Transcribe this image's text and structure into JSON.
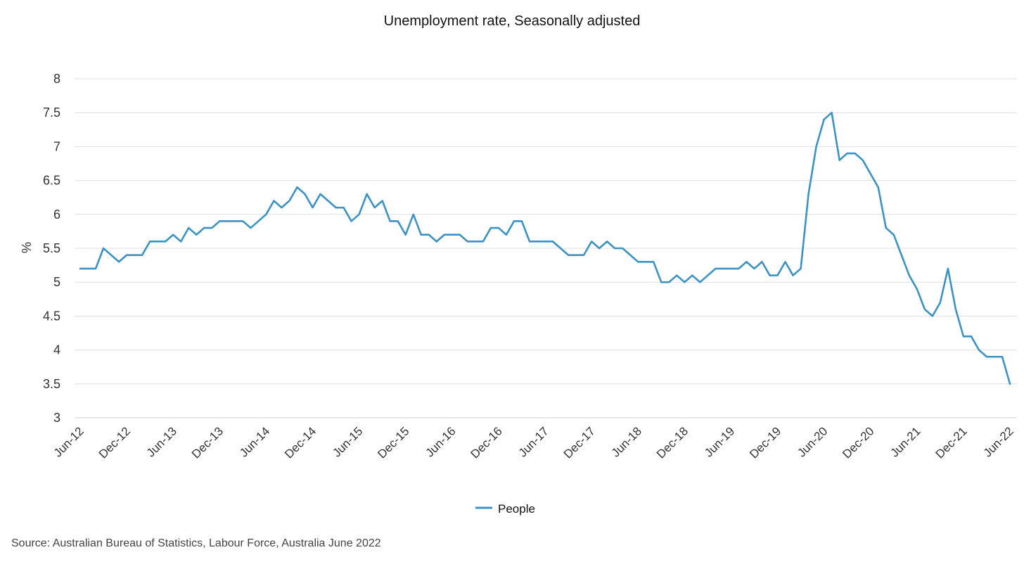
{
  "chart_data": {
    "type": "line",
    "title": "Unemployment rate, Seasonally adjusted",
    "ylabel": "%",
    "xlabel": "",
    "ylim": [
      3,
      8
    ],
    "yticks": [
      "3",
      "3.5",
      "4",
      "4.5",
      "5",
      "5.5",
      "6",
      "6.5",
      "7",
      "7.5",
      "8"
    ],
    "xticks": [
      "Jun-12",
      "Dec-12",
      "Jun-13",
      "Dec-13",
      "Jun-14",
      "Dec-14",
      "Jun-15",
      "Dec-15",
      "Jun-16",
      "Dec-16",
      "Jun-17",
      "Dec-17",
      "Jun-18",
      "Dec-18",
      "Jun-19",
      "Dec-19",
      "Jun-20",
      "Dec-20",
      "Jun-21",
      "Dec-21",
      "Jun-22"
    ],
    "grid": true,
    "legend_position": "bottom-center",
    "series": [
      {
        "name": "People",
        "color": "#3a93c3",
        "values": [
          5.2,
          5.2,
          5.2,
          5.5,
          5.4,
          5.3,
          5.4,
          5.4,
          5.4,
          5.6,
          5.6,
          5.6,
          5.7,
          5.6,
          5.8,
          5.7,
          5.8,
          5.8,
          5.9,
          5.9,
          5.9,
          5.9,
          5.8,
          5.9,
          6.0,
          6.2,
          6.1,
          6.2,
          6.4,
          6.3,
          6.1,
          6.3,
          6.2,
          6.1,
          6.1,
          5.9,
          6.0,
          6.3,
          6.1,
          6.2,
          5.9,
          5.9,
          5.7,
          6.0,
          5.7,
          5.7,
          5.6,
          5.7,
          5.7,
          5.7,
          5.6,
          5.6,
          5.6,
          5.8,
          5.8,
          5.7,
          5.9,
          5.9,
          5.6,
          5.6,
          5.6,
          5.6,
          5.5,
          5.4,
          5.4,
          5.4,
          5.6,
          5.5,
          5.6,
          5.5,
          5.5,
          5.4,
          5.3,
          5.3,
          5.3,
          5.0,
          5.0,
          5.1,
          5.0,
          5.1,
          5.0,
          5.1,
          5.2,
          5.2,
          5.2,
          5.2,
          5.3,
          5.2,
          5.3,
          5.1,
          5.1,
          5.3,
          5.1,
          5.2,
          6.3,
          7.0,
          7.4,
          7.5,
          6.8,
          6.9,
          6.9,
          6.8,
          6.6,
          6.4,
          5.8,
          5.7,
          5.4,
          5.1,
          4.9,
          4.6,
          4.5,
          4.7,
          5.2,
          4.6,
          4.2,
          4.2,
          4.0,
          3.9,
          3.9,
          3.9,
          3.5
        ]
      }
    ]
  },
  "source": "Source: Australian Bureau of Statistics, Labour Force, Australia June 2022"
}
